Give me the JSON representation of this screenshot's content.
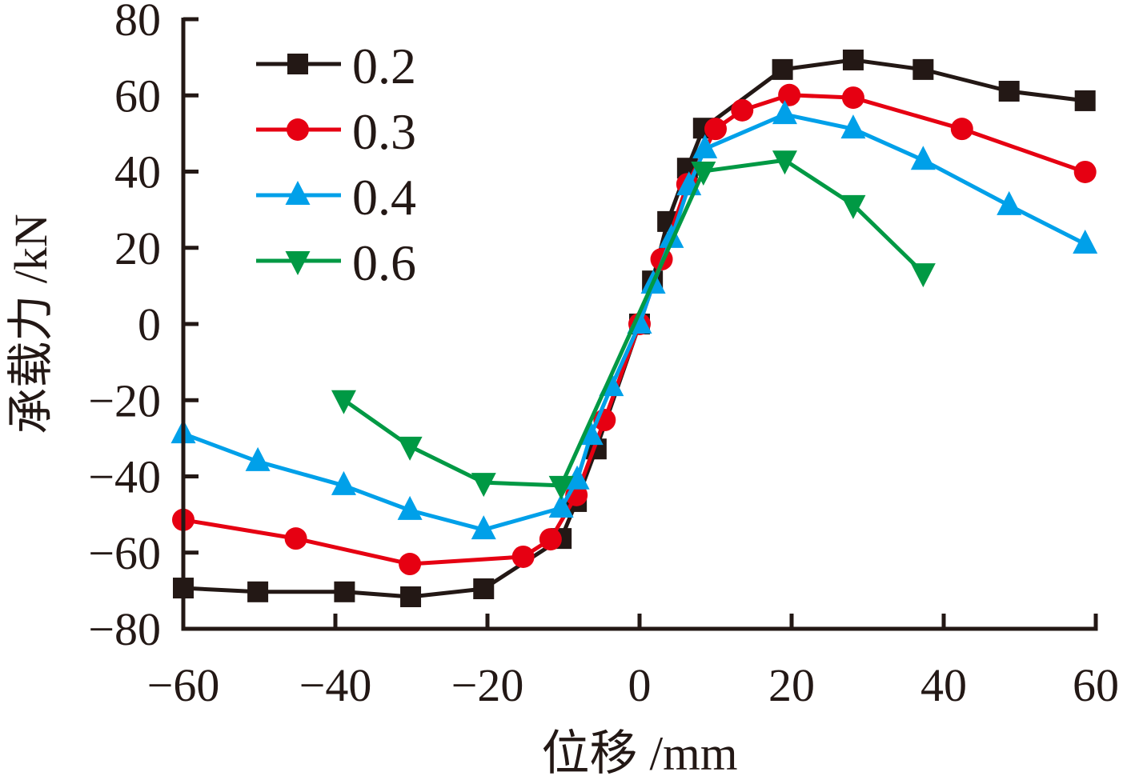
{
  "chart_data": {
    "type": "line",
    "title": "",
    "xlabel": "位移 /mm",
    "ylabel": "承载力 /kN",
    "xlim": [
      -60,
      60
    ],
    "ylim": [
      -80,
      80
    ],
    "xticks": [
      -60,
      -40,
      -20,
      0,
      20,
      40,
      60
    ],
    "yticks": [
      -80,
      -60,
      -40,
      -20,
      0,
      20,
      40,
      60,
      80
    ],
    "xtick_labels": [
      "−60",
      "−40",
      "−20",
      "0",
      "20",
      "40",
      "60"
    ],
    "ytick_labels": [
      "−80",
      "−60",
      "−40",
      "−20",
      "0",
      "20",
      "40",
      "60",
      "80"
    ],
    "grid": false,
    "legend_position": "top-left",
    "series": [
      {
        "name": "0.2",
        "color": "#231815",
        "marker": "square",
        "x": [
          -60,
          -50.2,
          -38.8,
          -30.1,
          -20.5,
          -10.3,
          -8.3,
          -5.7,
          0,
          1.7,
          3.7,
          6.3,
          8.4,
          18.8,
          28.1,
          37.3,
          48.6,
          58.6
        ],
        "y": [
          -69.3,
          -70.3,
          -70.3,
          -71.6,
          -69.5,
          -56.3,
          -46.6,
          -32.8,
          0,
          11.3,
          26.9,
          40.9,
          51.4,
          66.8,
          69.3,
          66.8,
          61.1,
          58.6
        ]
      },
      {
        "name": "0.3",
        "color": "#e60012",
        "marker": "circle",
        "x": [
          -60,
          -45.2,
          -30.2,
          -15.3,
          -11.7,
          -8.3,
          -4.6,
          0,
          2.9,
          6.3,
          10.0,
          13.5,
          19.7,
          28.1,
          42.4,
          58.6
        ],
        "y": [
          -51.4,
          -56.3,
          -63.0,
          -61.1,
          -56.5,
          -44.9,
          -25.2,
          0,
          17.0,
          36.7,
          51.2,
          56.1,
          60.1,
          59.4,
          51.2,
          39.9
        ]
      },
      {
        "name": "0.4",
        "color": "#00a0e9",
        "marker": "triangle-up",
        "x": [
          -60,
          -50.2,
          -38.9,
          -30.2,
          -20.5,
          -10.3,
          -8.2,
          -6.4,
          -3.7,
          0,
          1.8,
          4.2,
          6.5,
          8.6,
          19.1,
          28.1,
          37.3,
          48.6,
          58.6
        ],
        "y": [
          -28.8,
          -36.1,
          -42.4,
          -48.9,
          -54.0,
          -48.3,
          -40.9,
          -29.2,
          -16.4,
          0,
          10.5,
          22.5,
          36.3,
          46.0,
          55.0,
          51.2,
          43.0,
          31.1,
          21.0
        ]
      },
      {
        "name": "0.6",
        "color": "#009944",
        "marker": "triangle-down",
        "x": [
          -38.9,
          -30.2,
          -20.5,
          -10.3,
          8.4,
          19.1,
          28.1,
          37.3
        ],
        "y": [
          -19.9,
          -32.1,
          -41.6,
          -42.4,
          40.1,
          43.0,
          31.3,
          13.4
        ]
      }
    ]
  }
}
